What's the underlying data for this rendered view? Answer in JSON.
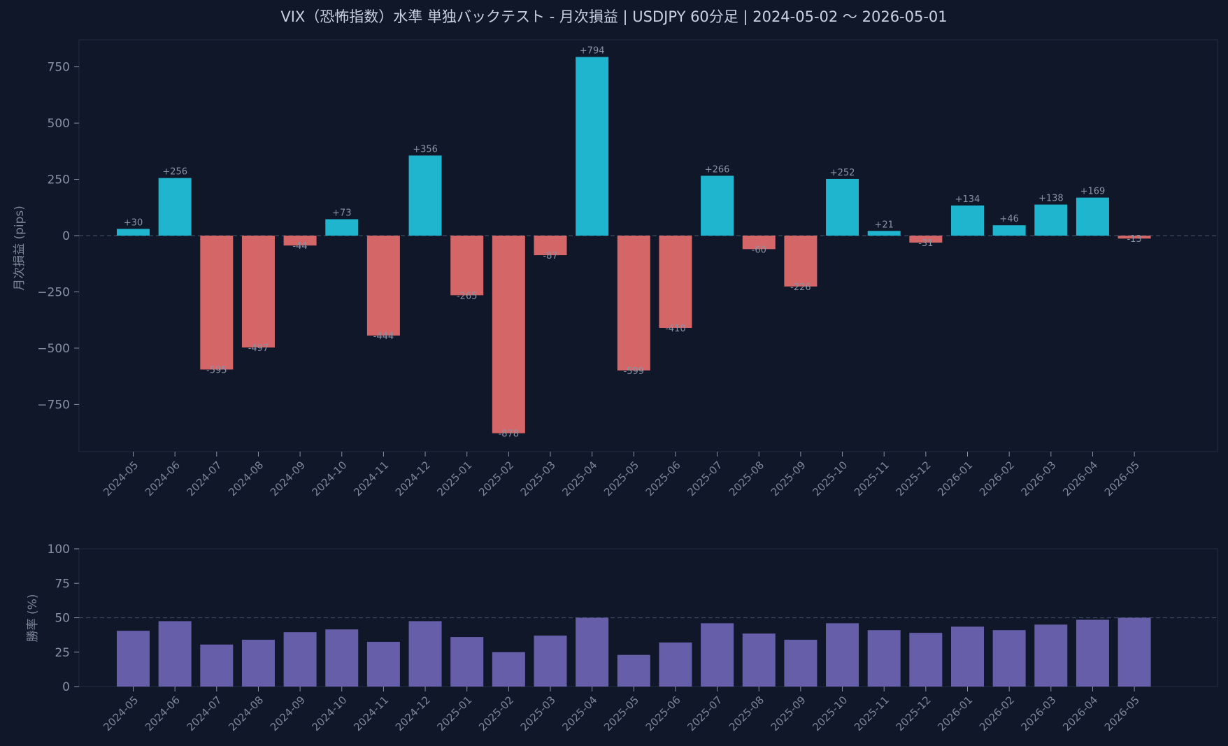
{
  "colors": {
    "background": "#0f1729",
    "positive": "#1fb5ce",
    "negative": "#d46668",
    "winrate": "#675ea9",
    "grid": "#3a475c",
    "frame": "#222c40"
  },
  "chart_data": [
    {
      "type": "bar",
      "title": "VIX（恐怖指数）水準 単独バックテスト - 月次損益 | USDJPY 60分足 | 2024-05-02 〜 2026-05-01",
      "xlabel": "",
      "ylabel": "月次損益 (pips)",
      "ylim": [
        -960,
        870
      ],
      "yticks": [
        750,
        500,
        250,
        0,
        -250,
        -500,
        -750
      ],
      "ytick_labels": [
        "750",
        "500",
        "250",
        "0",
        "−250",
        "−500",
        "−750"
      ],
      "reference_line": 0,
      "categories": [
        "2024-05",
        "2024-06",
        "2024-07",
        "2024-08",
        "2024-09",
        "2024-10",
        "2024-11",
        "2024-12",
        "2025-01",
        "2025-02",
        "2025-03",
        "2025-04",
        "2025-05",
        "2025-06",
        "2025-07",
        "2025-08",
        "2025-09",
        "2025-10",
        "2025-11",
        "2025-12",
        "2026-01",
        "2026-02",
        "2026-03",
        "2026-04",
        "2026-05"
      ],
      "values": [
        30,
        256,
        -595,
        -497,
        -44,
        73,
        -444,
        356,
        -265,
        -878,
        -87,
        794,
        -599,
        -410,
        266,
        -60,
        -226,
        252,
        21,
        -31,
        134,
        46,
        138,
        169,
        -13
      ],
      "data_labels": [
        "+30",
        "+256",
        "-595",
        "-497",
        "-44",
        "+73",
        "-444",
        "+356",
        "-265",
        "-878",
        "-87",
        "+794",
        "-599",
        "-410",
        "+266",
        "-60",
        "-226",
        "+252",
        "+21",
        "-31",
        "+134",
        "+46",
        "+138",
        "+169",
        "-13"
      ],
      "grid": false
    },
    {
      "type": "bar",
      "title": "",
      "xlabel": "",
      "ylabel": "勝率 (%)",
      "ylim": [
        0,
        100
      ],
      "yticks": [
        100,
        75,
        50,
        25,
        0
      ],
      "ytick_labels": [
        "100",
        "75",
        "50",
        "25",
        "0"
      ],
      "reference_line": 50,
      "categories": [
        "2024-05",
        "2024-06",
        "2024-07",
        "2024-08",
        "2024-09",
        "2024-10",
        "2024-11",
        "2024-12",
        "2025-01",
        "2025-02",
        "2025-03",
        "2025-04",
        "2025-05",
        "2025-06",
        "2025-07",
        "2025-08",
        "2025-09",
        "2025-10",
        "2025-11",
        "2025-12",
        "2026-01",
        "2026-02",
        "2026-03",
        "2026-04",
        "2026-05"
      ],
      "values": [
        40.5,
        47.5,
        30.5,
        34,
        39.5,
        41.5,
        32.5,
        47.5,
        36,
        25,
        37,
        50,
        23,
        32,
        46,
        38.5,
        34,
        46,
        41,
        39,
        43.5,
        41,
        45,
        48.5,
        50
      ],
      "grid": false
    }
  ]
}
